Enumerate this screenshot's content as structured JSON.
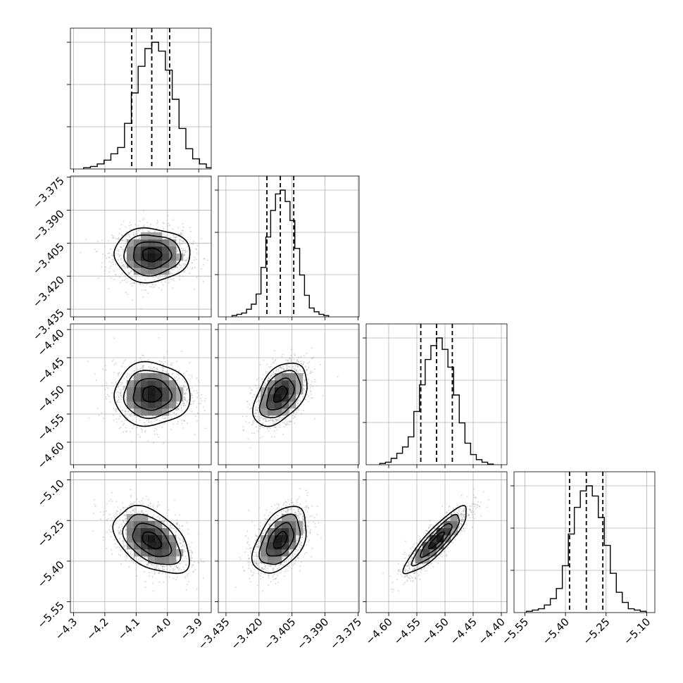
{
  "chart_data": {
    "type": "corner",
    "n_params": 4,
    "params": [
      {
        "quantiles": [
          -4.114,
          -4.05,
          -3.993
        ],
        "range": [
          -4.31,
          -3.86
        ],
        "ticks": [
          -4.3,
          -4.2,
          -4.1,
          -4.0,
          -3.9
        ],
        "tick_labels": [
          "−4.3",
          "−4.2",
          "−4.1",
          "−4.0",
          "−3.9"
        ],
        "hist": [
          0.01,
          0.02,
          0.04,
          0.07,
          0.12,
          0.17,
          0.36,
          0.6,
          0.81,
          0.95,
          1.0,
          0.93,
          0.78,
          0.55,
          0.32,
          0.16,
          0.08,
          0.04,
          0.01,
          0.005
        ]
      },
      {
        "quantiles": [
          -3.4164,
          -3.4103,
          -3.4042
        ],
        "range": [
          -3.4385,
          -3.3745
        ],
        "ticks": [
          -3.435,
          -3.42,
          -3.405,
          -3.39,
          -3.375
        ],
        "tick_labels": [
          "−3.435",
          "−3.420",
          "−3.405",
          "−3.390",
          "−3.375"
        ],
        "hist": [
          0.01,
          0.02,
          0.03,
          0.06,
          0.1,
          0.18,
          0.39,
          0.63,
          0.84,
          0.97,
          1.0,
          0.91,
          0.76,
          0.54,
          0.33,
          0.17,
          0.07,
          0.04,
          0.02,
          0.01
        ]
      },
      {
        "quantiles": [
          -4.543,
          -4.515,
          -4.487
        ],
        "range": [
          -4.64,
          -4.39
        ],
        "ticks": [
          -4.6,
          -4.55,
          -4.5,
          -4.45,
          -4.4
        ],
        "tick_labels": [
          "−4.60",
          "−4.55",
          "−4.50",
          "−4.45",
          "−4.40"
        ],
        "hist": [
          0.01,
          0.02,
          0.05,
          0.09,
          0.14,
          0.22,
          0.42,
          0.63,
          0.83,
          0.94,
          1.0,
          0.91,
          0.77,
          0.55,
          0.33,
          0.17,
          0.08,
          0.04,
          0.02,
          0.005
        ]
      },
      {
        "quantiles": [
          -5.385,
          -5.323,
          -5.262
        ],
        "range": [
          -5.59,
          -5.07
        ],
        "ticks": [
          -5.55,
          -5.4,
          -5.25,
          -5.1
        ],
        "tick_labels": [
          "−5.55",
          "−5.40",
          "−5.25",
          "−5.10"
        ],
        "hist": [
          0.01,
          0.02,
          0.03,
          0.06,
          0.11,
          0.19,
          0.37,
          0.62,
          0.83,
          0.96,
          1.0,
          0.92,
          0.75,
          0.53,
          0.31,
          0.16,
          0.08,
          0.03,
          0.02,
          0.01
        ]
      }
    ],
    "correlations": [
      [
        1.0,
        0.0,
        0.0,
        -0.45
      ],
      [
        0.0,
        1.0,
        0.45,
        0.45
      ],
      [
        0.0,
        0.45,
        1.0,
        0.88
      ],
      [
        -0.45,
        0.45,
        0.88,
        1.0
      ]
    ],
    "contour_levels_sigma": [
      0.5,
      1.0,
      1.5,
      2.0
    ],
    "grid": true,
    "colors": {
      "line": "#000000",
      "grid": "#b0b0b0",
      "points": "#a8a8a8"
    }
  }
}
